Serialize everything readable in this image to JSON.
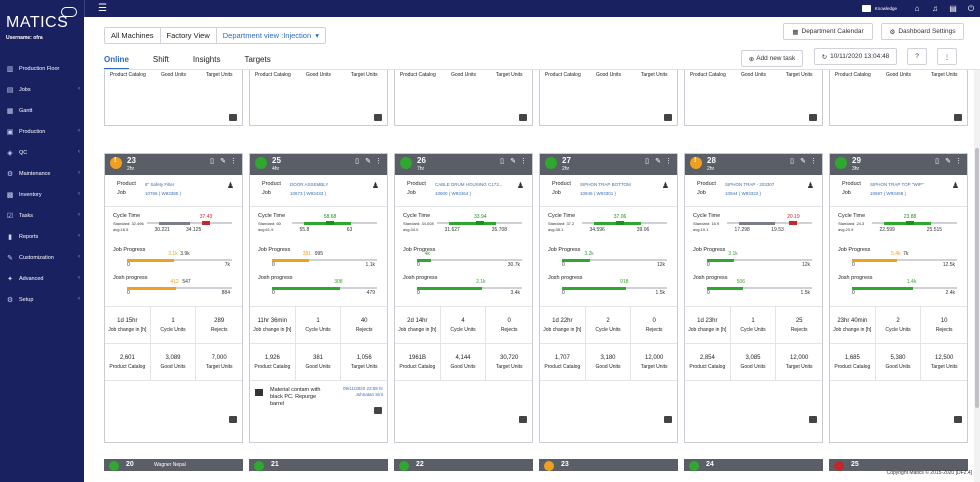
{
  "app": {
    "logo": "MATICS",
    "username": "Username: ofra"
  },
  "menu": [
    {
      "icon": "factory-icon",
      "glyph": "▥",
      "label": "Production Floor",
      "chevron": false
    },
    {
      "icon": "jobs-icon",
      "glyph": "▤",
      "label": "Jobs",
      "chevron": true
    },
    {
      "icon": "gantt-icon",
      "glyph": "▦",
      "label": "Gantt",
      "chevron": false
    },
    {
      "icon": "production-icon",
      "glyph": "▣",
      "label": "Production",
      "chevron": true
    },
    {
      "icon": "qc-icon",
      "glyph": "◈",
      "label": "QC",
      "chevron": true
    },
    {
      "icon": "maintenance-icon",
      "glyph": "⚙",
      "label": "Maintenance",
      "chevron": true
    },
    {
      "icon": "inventory-icon",
      "glyph": "▩",
      "label": "Inventory",
      "chevron": true
    },
    {
      "icon": "tasks-icon",
      "glyph": "☑",
      "label": "Tasks",
      "chevron": true
    },
    {
      "icon": "reports-icon",
      "glyph": "▮",
      "label": "Reports",
      "chevron": true
    },
    {
      "icon": "customization-icon",
      "glyph": "✎",
      "label": "Customization",
      "chevron": true
    },
    {
      "icon": "advanced-icon",
      "glyph": "✦",
      "label": "Advanced",
      "chevron": true
    },
    {
      "icon": "setup-icon",
      "glyph": "⚙",
      "label": "Setup",
      "chevron": true
    }
  ],
  "topbar": {
    "knowledge": "Knowledge",
    "icons": [
      "home-icon",
      "bell-icon",
      "clipboard-icon",
      "power-icon"
    ]
  },
  "view_group": {
    "all": "All Machines",
    "factory": "Factory View",
    "dept": "Department view :Injection",
    "caret": "▾"
  },
  "tabs": [
    "Online",
    "Shift",
    "Insights",
    "Targets"
  ],
  "buttons": {
    "calendar": "Department Calendar",
    "dashboard": "Dashboard Settings",
    "add_task": "Add new task",
    "datetime": "10/11/2020 13:04:48",
    "help": "?",
    "more": "⋮"
  },
  "top_partial_labels": [
    "Product Catalog",
    "Good Units",
    "Target Units"
  ],
  "common": {
    "product": "Product",
    "job": "Job",
    "cycle_time": "Cycle Time",
    "job_progress": "Job Progress",
    "josh_progress": "Josh progress",
    "job_change": "Job change in [h]",
    "cycle_units": "Cycle Units",
    "rejects": "Rejects",
    "product_catalog": "Product Catalog",
    "good_units": "Good Units",
    "target_units": "Target Units"
  },
  "cards": [
    {
      "num": "23",
      "hours": "2hr",
      "status_color": "#f0a020",
      "product": "8\" Safety Filter",
      "job": "10766 ( W93385 )",
      "standard": "Standard: 32.496",
      "avg": "avg:16.5",
      "ct_current": "37.43",
      "ct_current_color": "#c0292b",
      "ct_min": "30.221",
      "ct_max": "34.125",
      "ct_min_frac": 0.3,
      "ct_max_frac": 0.6,
      "ct_cur_frac": 0.75,
      "ct_color": "#c0292b",
      "jp_top": "3.1k",
      "jp_top2": "3.9k",
      "jp_min": "0",
      "jp_max": "7k",
      "jp_frac": 0.45,
      "jp_color": "#f0a020",
      "jo_top": "412",
      "jo_top2": "547",
      "jo_min": "0",
      "jo_max": "884",
      "jo_frac": 0.47,
      "jo_color": "#f0a020",
      "job_change": "1d 15hr",
      "cycle_units": "1",
      "rejects": "289",
      "catalog": "2,601",
      "good": "3,089",
      "target": "7,000",
      "note": null
    },
    {
      "num": "25",
      "hours": "4hr",
      "status_color": "#2fa82f",
      "product": "DOOR ASSEMBLY",
      "job": "10673 ( W93433 )",
      "standard": "Standard: 60",
      "avg": "avg:61.9",
      "ct_current": "58.68",
      "ct_current_color": "#1f8f1f",
      "ct_min": "55.8",
      "ct_max": "63",
      "ct_min_frac": 0.3,
      "ct_max_frac": 0.75,
      "ct_cur_frac": 0.55,
      "ct_color": "#1f8f1f",
      "jp_top": "381",
      "jp_top2": "995",
      "jp_min": "0",
      "jp_max": "1.1k",
      "jp_frac": 0.35,
      "jp_color": "#f0a020",
      "jo_top": "308",
      "jo_top2": "",
      "jo_min": "0",
      "jo_max": "479",
      "jo_frac": 0.65,
      "jo_color": "#2fa82f",
      "job_change": "11hr 36min",
      "cycle_units": "1",
      "rejects": "40",
      "catalog": "1,926",
      "good": "381",
      "target": "1,056",
      "note": {
        "text": "Material contam with black PC. Repurge barrel",
        "date": "09/11/2020 23:59 hr",
        "author": "Johnatan Sirit"
      }
    },
    {
      "num": "26",
      "hours": "7hr",
      "status_color": "#2fa82f",
      "product": "CABLE DRUM HOUSING C173...",
      "job": "10600 ( W93464 )",
      "standard": "Standard: 34.008",
      "avg": "avg:34.0",
      "ct_current": "33.94",
      "ct_current_color": "#1f8f1f",
      "ct_min": "31.627",
      "ct_max": "35.708",
      "ct_min_frac": 0.3,
      "ct_max_frac": 0.75,
      "ct_cur_frac": 0.6,
      "ct_color": "#1f8f1f",
      "jp_top": "4k",
      "jp_top2": "",
      "jp_min": "0",
      "jp_max": "30.7k",
      "jp_frac": 0.13,
      "jp_color": "#2fa82f",
      "jo_top": "2.1k",
      "jo_top2": "",
      "jo_min": "0",
      "jo_max": "3.4k",
      "jo_frac": 0.62,
      "jo_color": "#2fa82f",
      "job_change": "2d 14hr",
      "cycle_units": "4",
      "rejects": "0",
      "catalog": "1961B",
      "good": "4,144",
      "target": "30,720",
      "note": null
    },
    {
      "num": "27",
      "hours": "2hr",
      "status_color": "#2fa82f",
      "product": "SIPHON TRAP BOTTOM",
      "job": "10945 ( W93301 )",
      "standard": "Standard: 37.2",
      "avg": "avg:38.1",
      "ct_current": "37.06",
      "ct_current_color": "#1f8f1f",
      "ct_min": "34.596",
      "ct_max": "39.06",
      "ct_min_frac": 0.3,
      "ct_max_frac": 0.75,
      "ct_cur_frac": 0.55,
      "ct_color": "#1f8f1f",
      "jp_top": "3.2k",
      "jp_top2": "",
      "jp_min": "0",
      "jp_max": "12k",
      "jp_frac": 0.27,
      "jp_color": "#2fa82f",
      "jo_top": "918",
      "jo_top2": "",
      "jo_min": "0",
      "jo_max": "1.5k",
      "jo_frac": 0.61,
      "jo_color": "#2fa82f",
      "job_change": "1d 22hr",
      "cycle_units": "2",
      "rejects": "0",
      "catalog": "1,707",
      "good": "3,180",
      "target": "12,000",
      "note": null
    },
    {
      "num": "28",
      "hours": "2hr",
      "status_color": "#f0a020",
      "product": "SIPHON TRAP - 203307",
      "job": "10944 ( W93322 )",
      "standard": "Standard: 16.9",
      "avg": "avg:19.1",
      "ct_current": "20.19",
      "ct_current_color": "#c0292b",
      "ct_min": "17.298",
      "ct_max": "19.53",
      "ct_min_frac": 0.3,
      "ct_max_frac": 0.65,
      "ct_cur_frac": 0.82,
      "ct_color": "#c0292b",
      "jp_top": "3.1k",
      "jp_top2": "",
      "jp_min": "0",
      "jp_max": "12k",
      "jp_frac": 0.26,
      "jp_color": "#2fa82f",
      "jo_top": "506",
      "jo_top2": "",
      "jo_min": "0",
      "jo_max": "1.5k",
      "jo_frac": 0.34,
      "jo_color": "#2fa82f",
      "job_change": "1d 23hr",
      "cycle_units": "1",
      "rejects": "25",
      "catalog": "2,854",
      "good": "3,085",
      "target": "12,000",
      "note": null
    },
    {
      "num": "29",
      "hours": "3hr",
      "status_color": "#2fa82f",
      "product": "SIPHON TRAP TOP \"WIP\"",
      "job": "10697 ( W93469 )",
      "standard": "Standard: 24.3",
      "avg": "avg:23.9",
      "ct_current": "23.88",
      "ct_current_color": "#1f8f1f",
      "ct_min": "22.599",
      "ct_max": "25.515",
      "ct_min_frac": 0.3,
      "ct_max_frac": 0.75,
      "ct_cur_frac": 0.55,
      "ct_color": "#1f8f1f",
      "jp_top": "5.4k",
      "jp_top2": "7k",
      "jp_min": "0",
      "jp_max": "12.5k",
      "jp_frac": 0.43,
      "jp_color": "#f0a020",
      "jo_top": "1.4k",
      "jo_top2": "",
      "jo_min": "0",
      "jo_max": "2.4k",
      "jo_frac": 0.58,
      "jo_color": "#2fa82f",
      "job_change": "23hr 40min",
      "cycle_units": "2",
      "rejects": "10",
      "catalog": "1,685",
      "good": "5,380",
      "target": "12,500",
      "note": null
    }
  ],
  "bottom_cards": [
    {
      "num": "20",
      "label": "Wagner Nepal",
      "color": "#2fa82f"
    },
    {
      "num": "21",
      "label": "",
      "color": "#2fa82f"
    },
    {
      "num": "22",
      "label": "",
      "color": "#2fa82f"
    },
    {
      "num": "23",
      "label": "",
      "color": "#f0a020"
    },
    {
      "num": "24",
      "label": "",
      "color": "#2fa82f"
    },
    {
      "num": "25",
      "label": "",
      "color": "#c0292b"
    }
  ],
  "footer": "Copyright Matics © 2015-2020 [DF2.4]"
}
